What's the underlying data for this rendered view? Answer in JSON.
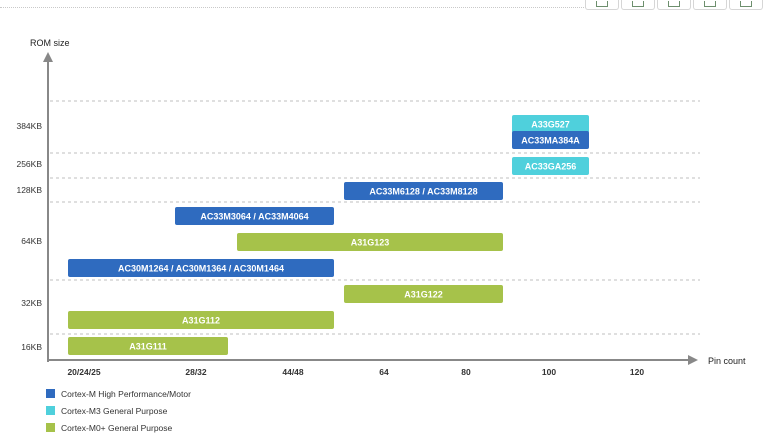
{
  "toolbar": {
    "buttons": [
      "download-icon",
      "expand-icon",
      "print-icon",
      "image-icon",
      "settings-icon"
    ]
  },
  "chart_data": {
    "type": "bar",
    "subtype": "gantt-range",
    "ylabel": "ROM size",
    "xlabel": "Pin count",
    "grid": "dashed-horizontal",
    "x_ticks": [
      "20/24/25",
      "28/32",
      "44/48",
      "64",
      "80",
      "100",
      "120"
    ],
    "y_ticks": [
      "16KB",
      "32KB",
      "64KB",
      "128KB",
      "256KB",
      "384KB"
    ],
    "colors": {
      "Cortex-M High Performance/Motor": "#2f6bbf",
      "Cortex-M3 General Purpose": "#4fd0dc",
      "Cortex-M0+ General Purpose": "#a6c24a"
    },
    "bars": [
      {
        "label": "A33G527",
        "series": "Cortex-M3 General Purpose",
        "x_start": "100",
        "x_end": "100",
        "rom": "384KB"
      },
      {
        "label": "AC33MA384A",
        "series": "Cortex-M High Performance/Motor",
        "x_start": "100",
        "x_end": "100",
        "rom": "384KB"
      },
      {
        "label": "AC33GA256",
        "series": "Cortex-M3 General Purpose",
        "x_start": "100",
        "x_end": "100",
        "rom": "256KB"
      },
      {
        "label": "AC33M6128 / AC33M8128",
        "series": "Cortex-M High Performance/Motor",
        "x_start": "64",
        "x_end": "80",
        "rom": "128KB"
      },
      {
        "label": "AC33M3064 / AC33M4064",
        "series": "Cortex-M High Performance/Motor",
        "x_start": "28/32",
        "x_end": "44/48",
        "rom": "64KB"
      },
      {
        "label": "A31G123",
        "series": "Cortex-M0+ General Purpose",
        "x_start": "28/32",
        "x_end": "80",
        "rom": "64KB"
      },
      {
        "label": "AC30M1264 / AC30M1364 / AC30M1464",
        "series": "Cortex-M High Performance/Motor",
        "x_start": "20/24/25",
        "x_end": "44/48",
        "rom": "64KB"
      },
      {
        "label": "A31G122",
        "series": "Cortex-M0+ General Purpose",
        "x_start": "64",
        "x_end": "80",
        "rom": "32KB"
      },
      {
        "label": "A31G112",
        "series": "Cortex-M0+ General Purpose",
        "x_start": "20/24/25",
        "x_end": "44/48",
        "rom": "32KB"
      },
      {
        "label": "A31G111",
        "series": "Cortex-M0+ General Purpose",
        "x_start": "20/24/25",
        "x_end": "28/32",
        "rom": "16KB"
      }
    ],
    "legend": [
      {
        "name": "Cortex-M High Performance/Motor",
        "color": "#2f6bbf"
      },
      {
        "name": "Cortex-M3 General Purpose",
        "color": "#4fd0dc"
      },
      {
        "name": "Cortex-M0+ General Purpose",
        "color": "#a6c24a"
      }
    ]
  }
}
